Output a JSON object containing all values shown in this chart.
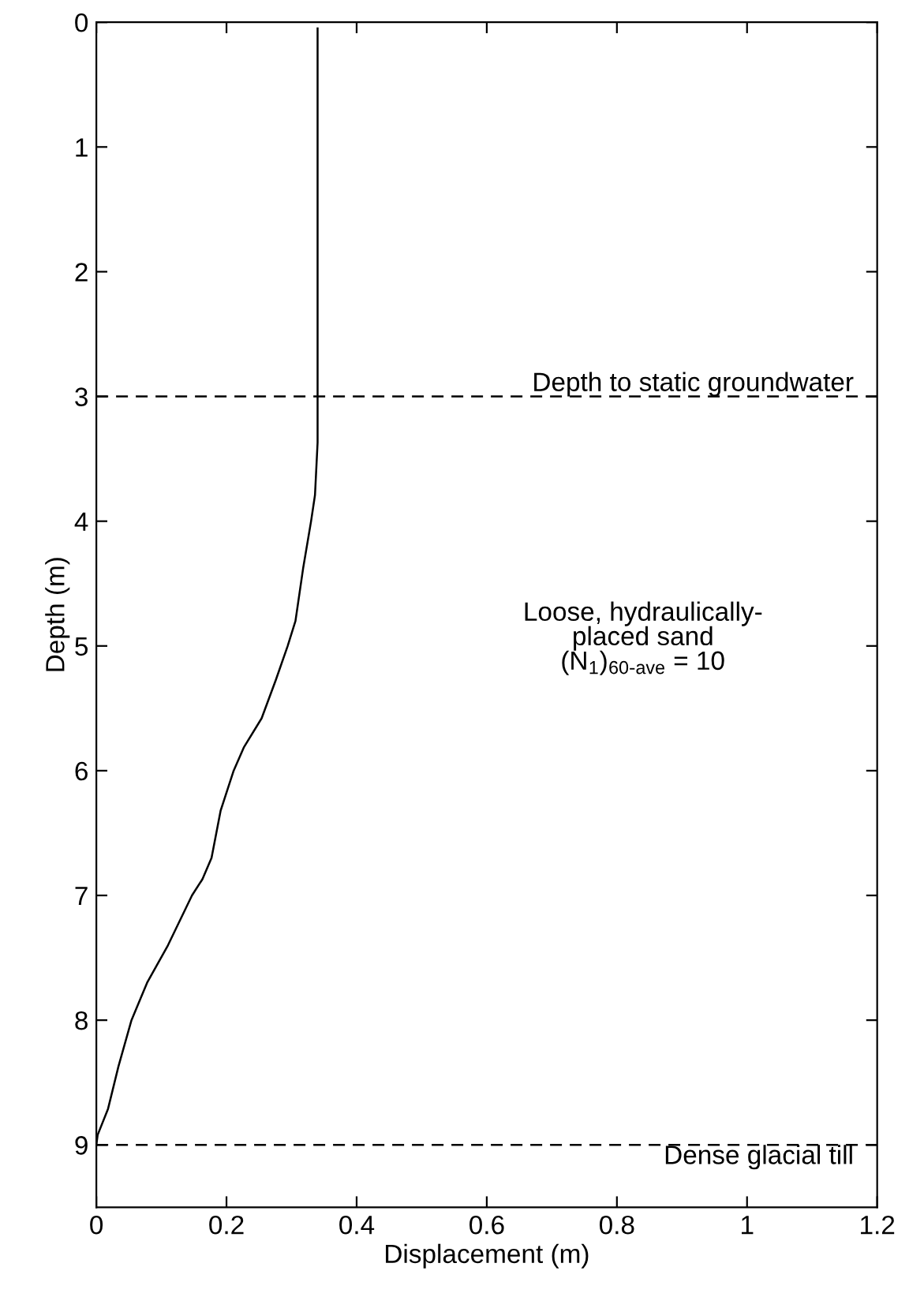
{
  "chart_data": {
    "type": "line",
    "xlabel": "Displacement (m)",
    "ylabel": "Depth (m)",
    "series": [
      {
        "color": "#000000",
        "x": [
          0.34,
          0.34,
          0.336,
          0.33,
          0.318,
          0.306,
          0.294,
          0.276,
          0.254,
          0.227,
          0.211,
          0.191,
          0.177,
          0.163,
          0.147,
          0.11,
          0.078,
          0.054,
          0.034,
          0.018,
          0.002,
          0.0
        ],
        "values": [
          0.05,
          3.37,
          3.79,
          4.0,
          4.37,
          4.8,
          5.0,
          5.27,
          5.58,
          5.81,
          6.0,
          6.32,
          6.7,
          6.87,
          7.0,
          7.4,
          7.7,
          8.0,
          8.37,
          8.71,
          8.92,
          9.0
        ]
      }
    ],
    "xlim": [
      0,
      1.2
    ],
    "xticks": [
      0,
      0.2,
      0.4,
      0.6,
      0.8,
      1,
      1.2
    ],
    "ylim": [
      9.5,
      0
    ],
    "yticks": [
      0,
      1,
      2,
      3,
      4,
      5,
      6,
      7,
      8,
      9
    ],
    "ref_lines": [
      {
        "axis": "y",
        "value": 3,
        "label": "Depth to static groundwater",
        "color": "#000000",
        "line_style": "dashed"
      },
      {
        "axis": "y",
        "value": 9,
        "label": "Dense glacial till",
        "color": "#000000",
        "line_style": "dashed"
      }
    ],
    "annotations": [
      "Loose, hydraulically-\nplaced sand\n(N$_{1}$)$_{60-ave}$ = 10"
    ],
    "grid": false,
    "legend": false,
    "marker": "none",
    "line_style": "solid"
  }
}
